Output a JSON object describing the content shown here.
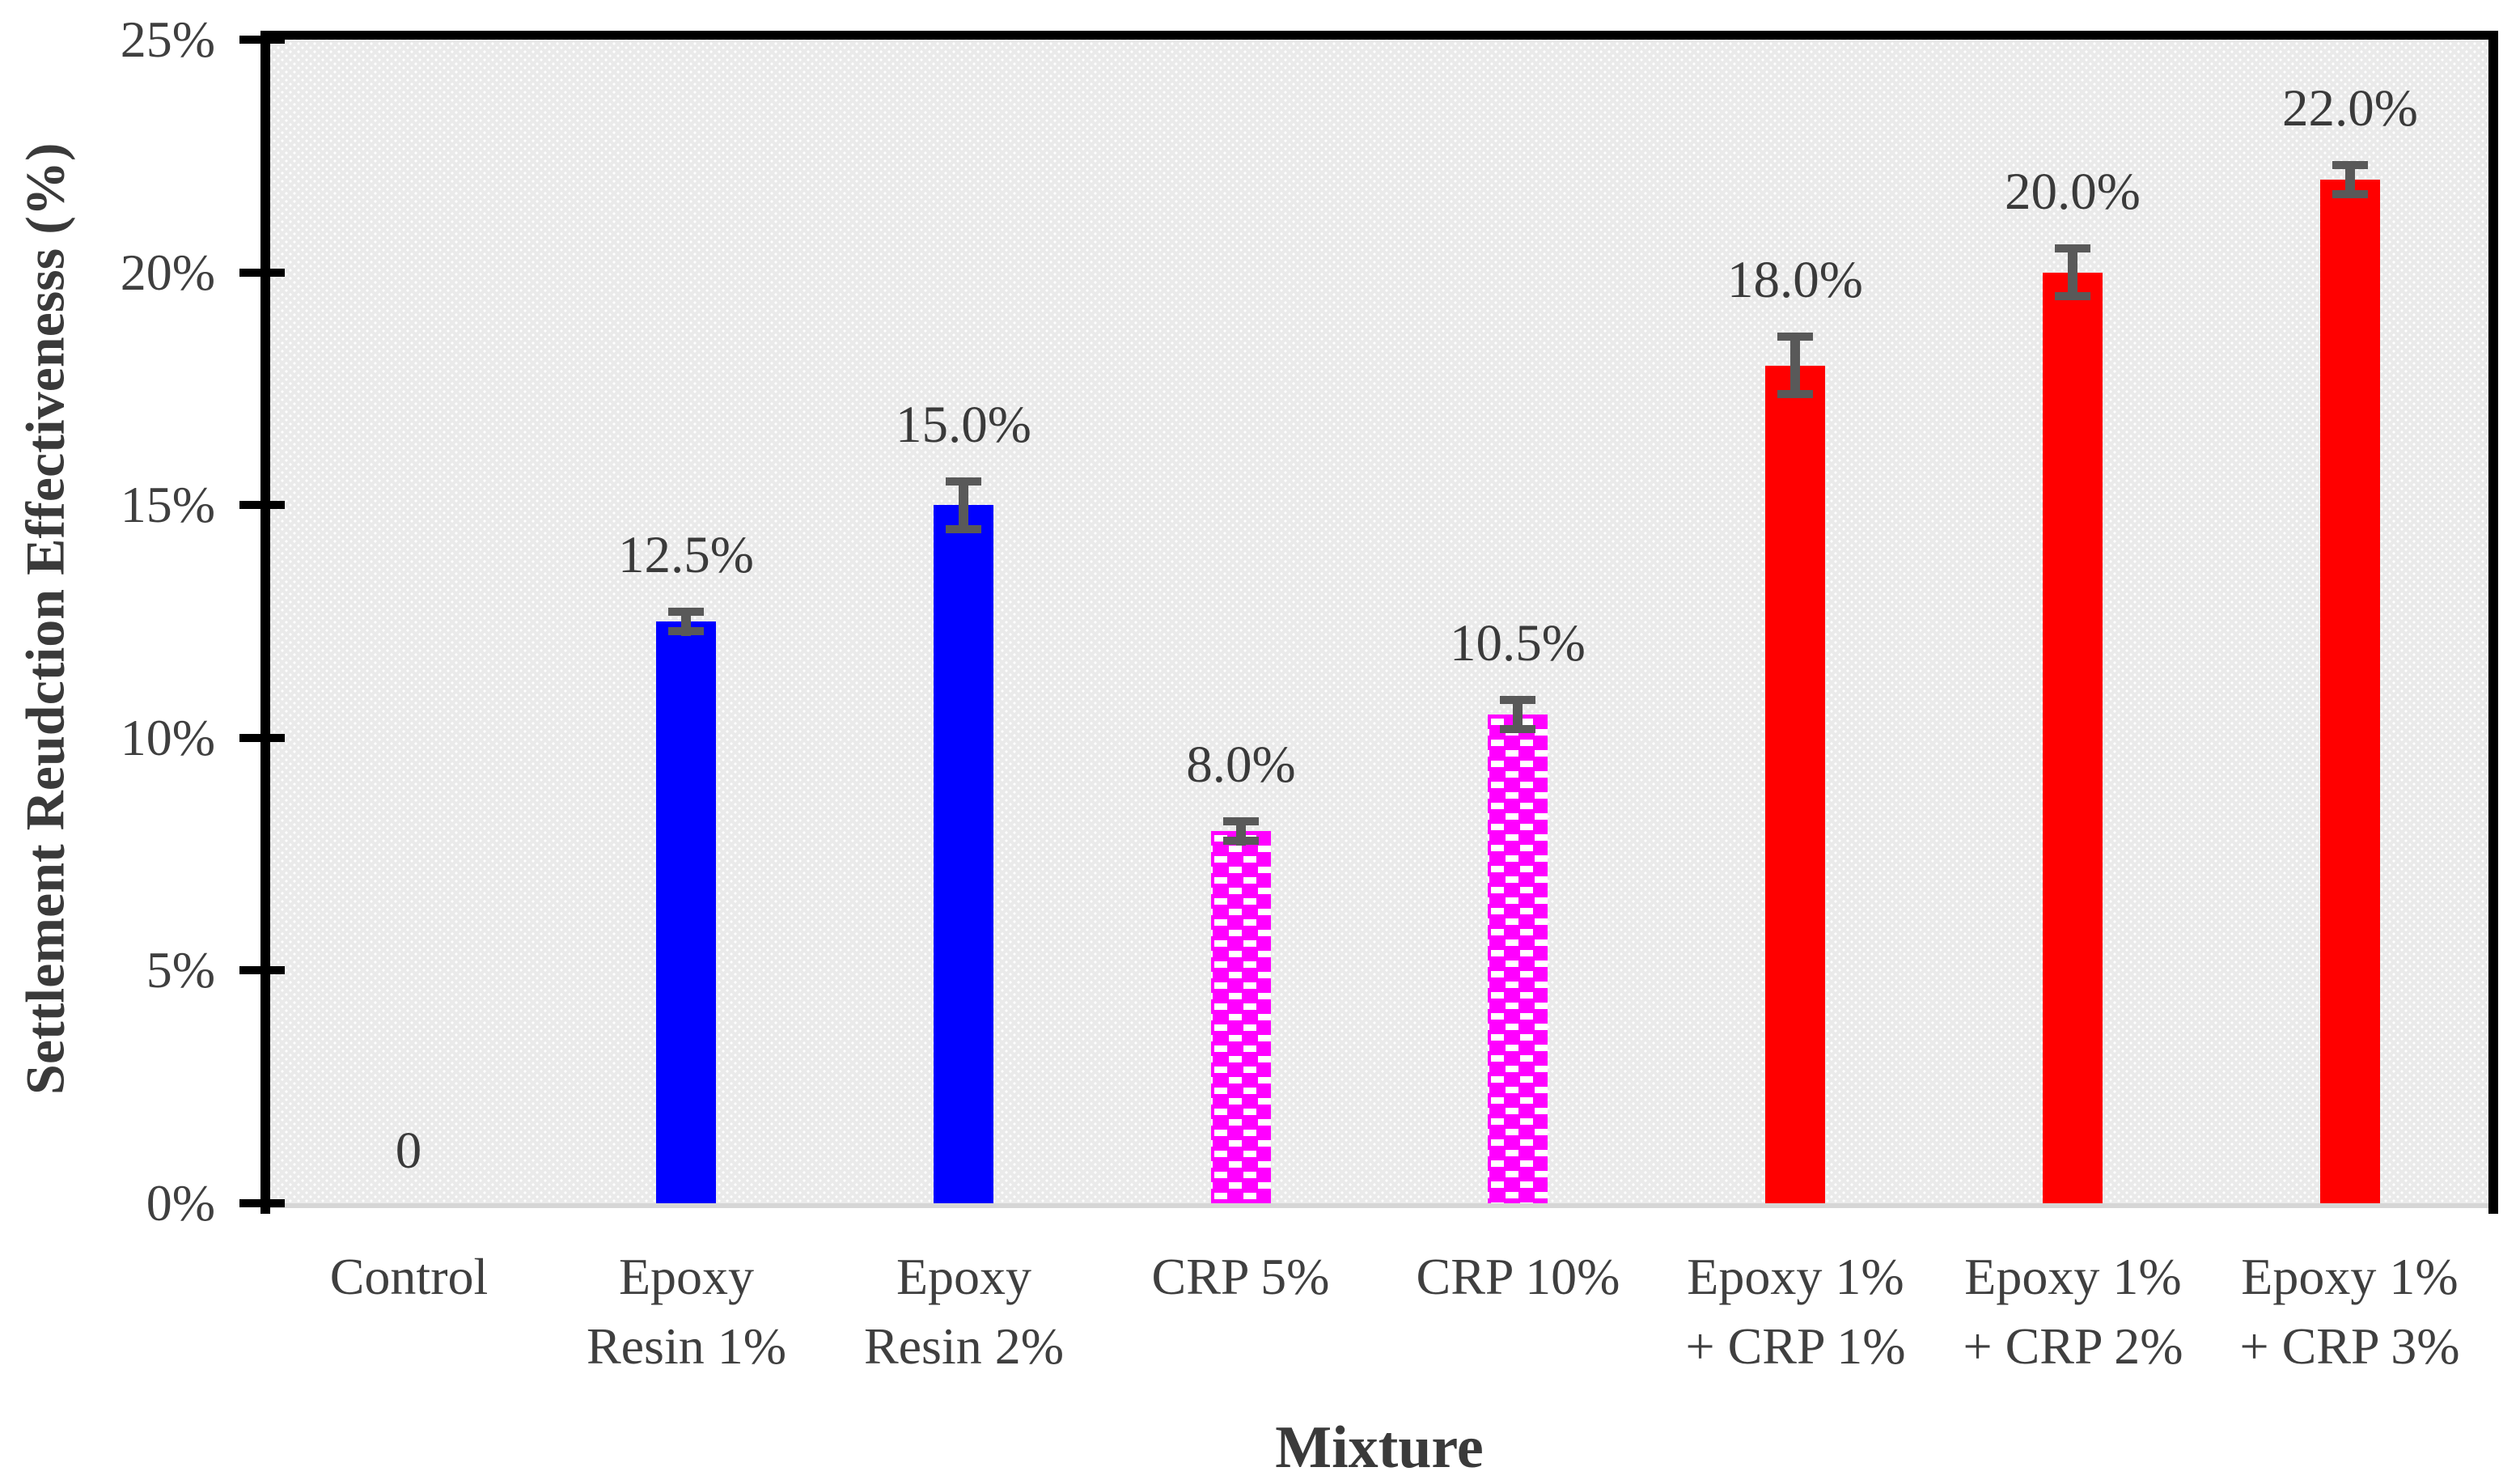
{
  "figure": {
    "background": "#FFFFFF"
  },
  "chart_data": {
    "type": "bar",
    "title": "",
    "xlabel": "Mixture",
    "ylabel": "Settlement Reudction Effectivenesss (%)",
    "categories": [
      "Control",
      "Epoxy Resin 1%",
      "Epoxy Resin 2%",
      "CRP 5%",
      "CRP 10%",
      "Epoxy 1% + CRP 1%",
      "Epoxy 1% + CRP 2%",
      "Epoxy 1% + CRP 3%"
    ],
    "category_label_lines": [
      [
        "Control"
      ],
      [
        "Epoxy",
        "Resin 1%"
      ],
      [
        "Epoxy",
        "Resin 2%"
      ],
      [
        "CRP 5%"
      ],
      [
        "CRP 10%"
      ],
      [
        "Epoxy 1%",
        "+ CRP 1%"
      ],
      [
        "Epoxy 1%",
        "+ CRP 2%"
      ],
      [
        "Epoxy 1%",
        "+ CRP 3%"
      ]
    ],
    "values": [
      0,
      12.5,
      15.0,
      8.0,
      10.5,
      18.0,
      20.0,
      22.0
    ],
    "data_labels": [
      "0",
      "12.5%",
      "15.0%",
      "8.0%",
      "10.5%",
      "18.0%",
      "20.0%",
      "22.0%"
    ],
    "error_bars": [
      0,
      0.3,
      0.6,
      0.3,
      0.4,
      0.7,
      0.6,
      0.4
    ],
    "bar_fills": [
      "none",
      "solid",
      "solid",
      "pattern-dots",
      "pattern-dots",
      "solid",
      "solid",
      "solid"
    ],
    "bar_colors": [
      null,
      "#0000FF",
      "#0000FF",
      "#FF00FF",
      "#FF00FF",
      "#FF0000",
      "#FF0000",
      "#FF0000"
    ],
    "ylim": [
      0,
      25
    ],
    "ytick_values": [
      0,
      5,
      10,
      15,
      20,
      25
    ],
    "ytick_labels": [
      "0%",
      "5%",
      "10%",
      "15%",
      "20%",
      "25%"
    ],
    "grid": "off",
    "legend": "none"
  },
  "style": {
    "plot_bg": "#EAEAEA",
    "plot_bg_dot": "#FFFFFF",
    "frame_color": "#000000",
    "baseline_color": "#D6D6D6",
    "error_bar_color": "#595959",
    "pattern_dot_color": "#FFFFFF",
    "text_color": "#3F3F3F"
  }
}
